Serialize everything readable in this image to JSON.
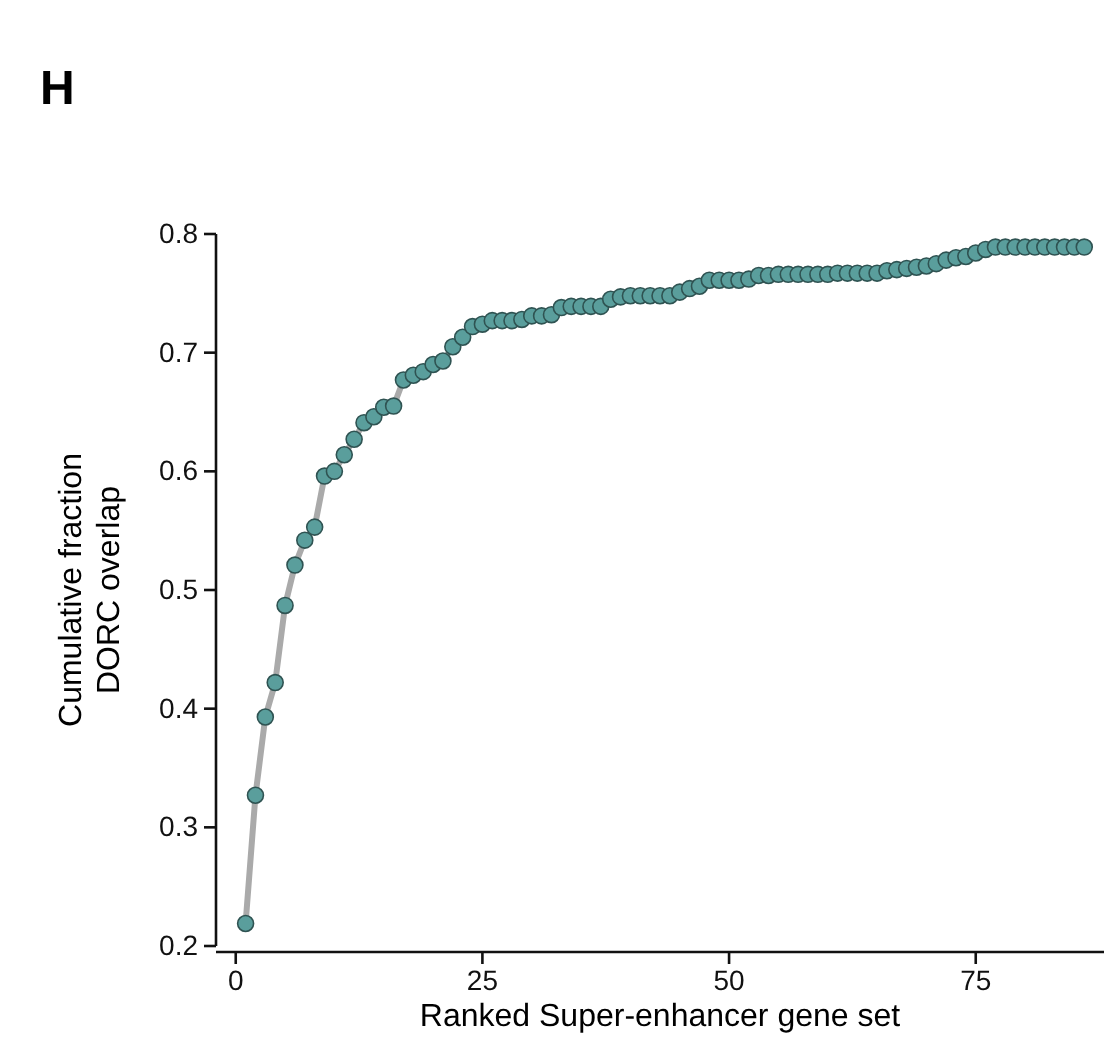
{
  "chart_data": {
    "type": "line",
    "annotations": [
      "H"
    ],
    "xlabel": "Ranked Super-enhancer gene set",
    "ylabel": "Cumulative fraction\nDORC overlap",
    "x": [
      1,
      2,
      3,
      4,
      5,
      6,
      7,
      8,
      9,
      10,
      11,
      12,
      13,
      14,
      15,
      16,
      17,
      18,
      19,
      20,
      21,
      22,
      23,
      24,
      25,
      26,
      27,
      28,
      29,
      30,
      31,
      32,
      33,
      34,
      35,
      36,
      37,
      38,
      39,
      40,
      41,
      42,
      43,
      44,
      45,
      46,
      47,
      48,
      49,
      50,
      51,
      52,
      53,
      54,
      55,
      56,
      57,
      58,
      59,
      60,
      61,
      62,
      63,
      64,
      65,
      66,
      67,
      68,
      69,
      70,
      71,
      72,
      73,
      74,
      75,
      76,
      77,
      78,
      79,
      80,
      81,
      82,
      83,
      84,
      85,
      86
    ],
    "series": [
      {
        "color": "#5a9e9c",
        "values": [
          0.219,
          0.327,
          0.393,
          0.422,
          0.487,
          0.521,
          0.542,
          0.553,
          0.596,
          0.6,
          0.614,
          0.627,
          0.641,
          0.646,
          0.654,
          0.655,
          0.677,
          0.681,
          0.684,
          0.69,
          0.693,
          0.705,
          0.713,
          0.722,
          0.724,
          0.727,
          0.727,
          0.727,
          0.728,
          0.731,
          0.731,
          0.732,
          0.738,
          0.739,
          0.739,
          0.739,
          0.739,
          0.745,
          0.747,
          0.748,
          0.748,
          0.748,
          0.748,
          0.748,
          0.751,
          0.754,
          0.756,
          0.761,
          0.761,
          0.761,
          0.761,
          0.762,
          0.765,
          0.765,
          0.766,
          0.766,
          0.766,
          0.766,
          0.766,
          0.766,
          0.767,
          0.767,
          0.767,
          0.767,
          0.767,
          0.769,
          0.77,
          0.771,
          0.772,
          0.773,
          0.775,
          0.778,
          0.78,
          0.781,
          0.784,
          0.787,
          0.789,
          0.789,
          0.789,
          0.789,
          0.789,
          0.789,
          0.789,
          0.789,
          0.789,
          0.789
        ]
      }
    ],
    "xlim": [
      -2,
      88
    ],
    "xticks": [
      0,
      25,
      50,
      75
    ],
    "ylim": [
      0.2,
      0.8
    ],
    "yticks": [
      0.2,
      0.3,
      0.4,
      0.5,
      0.6,
      0.7,
      0.8
    ],
    "marker": "circle",
    "line_style": "solid"
  }
}
